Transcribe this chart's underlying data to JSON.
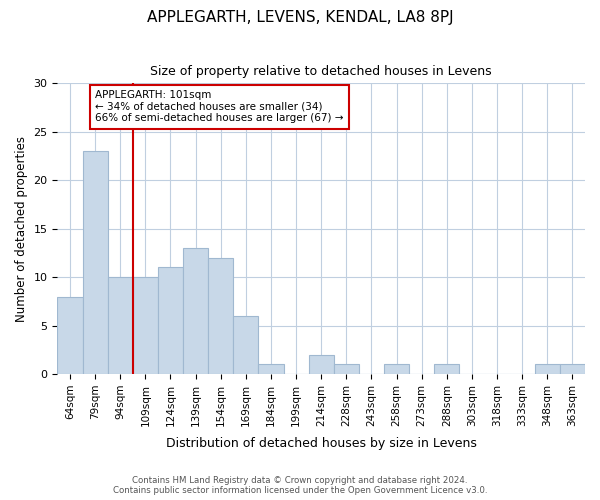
{
  "title": "APPLEGARTH, LEVENS, KENDAL, LA8 8PJ",
  "subtitle": "Size of property relative to detached houses in Levens",
  "xlabel": "Distribution of detached houses by size in Levens",
  "ylabel": "Number of detached properties",
  "bar_color": "#c8d8e8",
  "bar_edge_color": "#a0b8d0",
  "vline_color": "#cc0000",
  "categories": [
    "64sqm",
    "79sqm",
    "94sqm",
    "109sqm",
    "124sqm",
    "139sqm",
    "154sqm",
    "169sqm",
    "184sqm",
    "199sqm",
    "214sqm",
    "228sqm",
    "243sqm",
    "258sqm",
    "273sqm",
    "288sqm",
    "303sqm",
    "318sqm",
    "333sqm",
    "348sqm",
    "363sqm"
  ],
  "values": [
    8,
    23,
    10,
    10,
    11,
    13,
    12,
    6,
    1,
    0,
    2,
    1,
    0,
    1,
    0,
    1,
    0,
    0,
    0,
    1,
    1
  ],
  "ylim": [
    0,
    30
  ],
  "yticks": [
    0,
    5,
    10,
    15,
    20,
    25,
    30
  ],
  "annotation_title": "APPLEGARTH: 101sqm",
  "annotation_line1": "← 34% of detached houses are smaller (34)",
  "annotation_line2": "66% of semi-detached houses are larger (67) →",
  "footer1": "Contains HM Land Registry data © Crown copyright and database right 2024.",
  "footer2": "Contains public sector information licensed under the Open Government Licence v3.0.",
  "bg_color": "#ffffff",
  "grid_color": "#c0cfe0"
}
